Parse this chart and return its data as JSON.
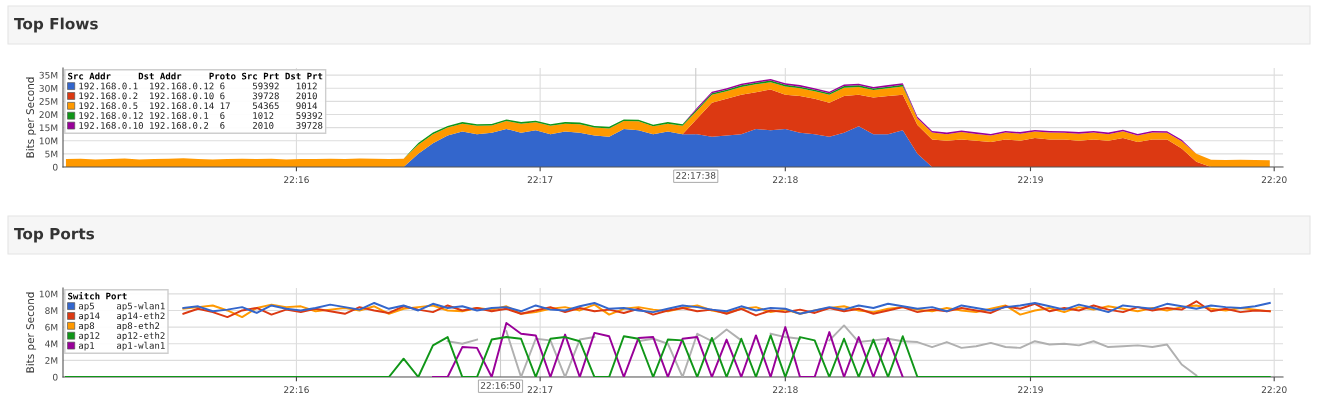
{
  "chart_data": [
    {
      "type": "area",
      "title": "Top Flows",
      "ylabel": "Bits per Second",
      "stacked": true,
      "grid": true,
      "legend": "top left",
      "legend_title": "Src Addr\tDst Addr\tProto\tSrc Prt\tDst Prt",
      "x": [
        22.251,
        22.252,
        22.253,
        22.254,
        22.255,
        22.256,
        22.257,
        22.258,
        22.259,
        22.26,
        22.261,
        22.262,
        22.263,
        22.264,
        22.265,
        22.266,
        22.267,
        22.268,
        22.269,
        22.27,
        22.271,
        22.272,
        22.273,
        22.274,
        22.275,
        22.276,
        22.277,
        22.278,
        22.279,
        22.28,
        22.281,
        22.282,
        22.283,
        22.284,
        22.285,
        22.286,
        22.287,
        22.288,
        22.289,
        22.29,
        22.291,
        22.292,
        22.293,
        22.294,
        22.295,
        22.296,
        22.297,
        22.298,
        22.299,
        22.3,
        22.301,
        22.302,
        22.303,
        22.304,
        22.305,
        22.306,
        22.307,
        22.308,
        22.309,
        22.31,
        22.311,
        22.312,
        22.313,
        22.314,
        22.315,
        22.316,
        22.317,
        22.318,
        22.319,
        22.32,
        22.321,
        22.322,
        22.323,
        22.324,
        22.325,
        22.326,
        22.327,
        22.328,
        22.329,
        22.33,
        22.331,
        22.332,
        22.333
      ],
      "xlim": [
        22.2508,
        22.3339
      ],
      "xticks": [
        {
          "value": 22.2667,
          "label": "22:16"
        },
        {
          "value": 22.2833,
          "label": "22:17"
        },
        {
          "value": 22.3,
          "label": "22:18"
        },
        {
          "value": 22.3167,
          "label": "22:19"
        },
        {
          "value": 22.3333,
          "label": "22:20"
        }
      ],
      "ylim": [
        0,
        37.7
      ],
      "yticks": [
        0,
        {
          "value": 5,
          "label": "5M"
        },
        {
          "value": 10,
          "label": "10M"
        },
        {
          "value": 15,
          "label": "15M"
        },
        {
          "value": 20,
          "label": "20M"
        },
        {
          "value": 25,
          "label": "25M"
        },
        {
          "value": 30,
          "label": "30M"
        },
        {
          "value": 35,
          "label": "35M"
        }
      ],
      "ref_lines": [
        {
          "axis": "x",
          "value": 22.2939,
          "label": "22:17:38",
          "color": "#cccccc"
        }
      ],
      "series": [
        {
          "name": "192.168.0.1\t192.168.0.12\t6\t59392\t1012",
          "color": "#3366cc",
          "values": [
            0,
            0,
            0,
            0,
            0,
            0,
            0,
            0,
            0,
            0,
            0,
            0,
            0,
            0,
            0,
            0,
            0,
            0,
            0,
            0,
            0,
            0,
            0,
            0,
            5,
            9,
            12,
            13.5,
            12.5,
            13,
            14.5,
            13,
            14,
            12.5,
            13.5,
            13,
            12,
            11.5,
            14.5,
            14,
            12.5,
            13.5,
            12.5,
            12.5,
            11.5,
            12,
            12.5,
            14.5,
            14,
            14.5,
            13,
            12.5,
            11.5,
            13,
            15.5,
            12.5,
            12.5,
            14,
            5,
            0,
            0,
            0,
            0,
            0,
            0,
            0,
            0,
            0,
            0,
            0,
            0,
            0,
            0,
            0,
            0,
            0,
            0,
            0,
            0,
            0,
            0,
            0,
            0
          ]
        },
        {
          "name": "192.168.0.2\t192.168.0.10\t6\t39728\t2010",
          "color": "#dc3912",
          "values": [
            0,
            0,
            0,
            0,
            0,
            0,
            0,
            0,
            0,
            0,
            0,
            0,
            0,
            0,
            0,
            0,
            0,
            0,
            0,
            0,
            0,
            0,
            0,
            0,
            0,
            0,
            0,
            0,
            0,
            0,
            0,
            0,
            0,
            0,
            0,
            0,
            0,
            0,
            0,
            0,
            0,
            0,
            0,
            6,
            13,
            14,
            15,
            14,
            15.5,
            13,
            14,
            13.5,
            13,
            14,
            12,
            14,
            14.5,
            13.5,
            11,
            10.5,
            10,
            10.5,
            10,
            9.5,
            10.5,
            10,
            11,
            10.5,
            10.5,
            10,
            10.5,
            10,
            11,
            9.5,
            10.5,
            10.5,
            7,
            2,
            0,
            0,
            0,
            0,
            0
          ]
        },
        {
          "name": "192.168.0.5\t192.168.0.14\t17\t54365\t9014",
          "color": "#ff9900",
          "values": [
            3.0,
            3.1,
            2.9,
            3.0,
            3.2,
            2.9,
            3.0,
            3.1,
            3.3,
            3.0,
            2.9,
            3.0,
            3.1,
            3.0,
            3.1,
            2.9,
            3.0,
            3.0,
            3.1,
            3.0,
            3.2,
            3.1,
            3.0,
            3.1,
            3.5,
            3.5,
            3.0,
            3.0,
            3.2,
            2.8,
            3.0,
            3.5,
            3.0,
            3.2,
            3.0,
            3.3,
            3.0,
            3.2,
            3.0,
            3.4,
            3.0,
            3.0,
            3.2,
            3.0,
            3.0,
            2.8,
            3.0,
            3.0,
            2.8,
            3.2,
            3.0,
            2.8,
            3.0,
            3.2,
            3.0,
            2.8,
            3.0,
            3.2,
            2.5,
            2.6,
            2.5,
            2.8,
            2.6,
            2.5,
            2.6,
            2.7,
            2.5,
            2.6,
            2.5,
            2.7,
            2.6,
            2.5,
            2.6,
            2.5,
            2.6,
            2.5,
            2.8,
            3.0,
            2.8,
            2.7,
            2.8,
            2.7,
            2.6
          ]
        },
        {
          "name": "192.168.0.12\t192.168.0.1\t6\t1012\t59392",
          "color": "#109618",
          "values": [
            0,
            0,
            0,
            0,
            0,
            0,
            0,
            0,
            0,
            0,
            0,
            0,
            0,
            0,
            0,
            0,
            0,
            0,
            0,
            0,
            0,
            0,
            0,
            0,
            0.6,
            0.6,
            0.6,
            0.6,
            0.6,
            0.6,
            0.6,
            0.6,
            0.6,
            0.6,
            0.6,
            0.6,
            0.6,
            0.6,
            0.6,
            0.6,
            0.6,
            0.6,
            0.6,
            0.6,
            0.6,
            0.6,
            0.6,
            0.6,
            0.6,
            0.6,
            0.6,
            0.6,
            0.6,
            0.6,
            0.6,
            0.6,
            0.6,
            0.6,
            0,
            0,
            0,
            0,
            0,
            0,
            0,
            0,
            0,
            0,
            0,
            0,
            0,
            0,
            0,
            0,
            0,
            0,
            0,
            0,
            0,
            0,
            0,
            0,
            0
          ]
        },
        {
          "name": "192.168.0.10\t192.168.0.2\t6\t2010\t39728",
          "color": "#990099",
          "values": [
            0,
            0,
            0,
            0,
            0,
            0,
            0,
            0,
            0,
            0,
            0,
            0,
            0,
            0,
            0,
            0,
            0,
            0,
            0,
            0,
            0,
            0,
            0,
            0,
            0,
            0,
            0,
            0,
            0,
            0,
            0,
            0,
            0,
            0,
            0,
            0,
            0,
            0,
            0,
            0,
            0,
            0,
            0,
            0.6,
            0.6,
            0.6,
            0.6,
            0.6,
            0.6,
            0.6,
            0.6,
            0.6,
            0.6,
            0.6,
            0.6,
            0.6,
            0.6,
            0.6,
            0.6,
            0.6,
            0.6,
            0.6,
            0.6,
            0.6,
            0.6,
            0.6,
            0.6,
            0.6,
            0.6,
            0.6,
            0.6,
            0.6,
            0.6,
            0.6,
            0.6,
            0.6,
            0.6,
            0,
            0,
            0,
            0,
            0,
            0
          ]
        }
      ]
    },
    {
      "type": "line",
      "title": "Top Ports",
      "ylabel": "Bits per Second",
      "grid": true,
      "legend": "top left",
      "legend_title": "Switch\tPort",
      "x": [
        22.251,
        22.252,
        22.253,
        22.254,
        22.255,
        22.256,
        22.257,
        22.258,
        22.259,
        22.26,
        22.261,
        22.262,
        22.263,
        22.264,
        22.265,
        22.266,
        22.267,
        22.268,
        22.269,
        22.27,
        22.271,
        22.272,
        22.273,
        22.274,
        22.275,
        22.276,
        22.277,
        22.278,
        22.279,
        22.28,
        22.281,
        22.282,
        22.283,
        22.284,
        22.285,
        22.286,
        22.287,
        22.288,
        22.289,
        22.29,
        22.291,
        22.292,
        22.293,
        22.294,
        22.295,
        22.296,
        22.297,
        22.298,
        22.299,
        22.3,
        22.301,
        22.302,
        22.303,
        22.304,
        22.305,
        22.306,
        22.307,
        22.308,
        22.309,
        22.31,
        22.311,
        22.312,
        22.313,
        22.314,
        22.315,
        22.316,
        22.317,
        22.318,
        22.319,
        22.32,
        22.321,
        22.322,
        22.323,
        22.324,
        22.325,
        22.326,
        22.327,
        22.328,
        22.329,
        22.33,
        22.331,
        22.332,
        22.333
      ],
      "xlim": [
        22.2508,
        22.3339
      ],
      "xticks": [
        {
          "value": 22.2667,
          "label": "22:16"
        },
        {
          "value": 22.2833,
          "label": "22:17"
        },
        {
          "value": 22.3,
          "label": "22:18"
        },
        {
          "value": 22.3167,
          "label": "22:19"
        },
        {
          "value": 22.3333,
          "label": "22:20"
        }
      ],
      "ylim": [
        0,
        10.7
      ],
      "yticks": [
        0,
        {
          "value": 2,
          "label": "2M"
        },
        {
          "value": 4,
          "label": "4M"
        },
        {
          "value": 6,
          "label": "6M"
        },
        {
          "value": 8,
          "label": "8M"
        },
        {
          "value": 10,
          "label": "10M"
        }
      ],
      "ref_lines": [
        {
          "axis": "x",
          "value": 22.2806,
          "label": "22:16:50",
          "color": "#cccccc"
        }
      ],
      "series": [
        {
          "name": "ap5\tap5-wlan1",
          "color": "#3366cc",
          "values": [
            null,
            null,
            null,
            null,
            null,
            null,
            null,
            null,
            8.3,
            8.5,
            7.9,
            8.1,
            8.4,
            7.7,
            8.6,
            8.2,
            8.0,
            8.3,
            8.7,
            8.4,
            8.1,
            8.9,
            8.2,
            8.6,
            8.0,
            8.8,
            8.3,
            8.5,
            8.0,
            8.3,
            8.4,
            7.9,
            8.6,
            8.1,
            8.0,
            8.5,
            8.9,
            8.2,
            8.3,
            8.0,
            7.8,
            8.2,
            8.6,
            8.4,
            8.1,
            7.9,
            8.5,
            8.0,
            8.3,
            8.2,
            7.6,
            8.0,
            8.4,
            8.1,
            8.6,
            8.3,
            8.8,
            8.5,
            8.2,
            8.4,
            7.9,
            8.6,
            8.3,
            8.0,
            8.4,
            8.6,
            8.9,
            8.5,
            8.1,
            8.7,
            8.3,
            7.8,
            8.6,
            8.4,
            8.2,
            8.8,
            8.5,
            8.2,
            8.6,
            8.4,
            8.3,
            8.5,
            8.9
          ]
        },
        {
          "name": "ap14\tap14-eth2",
          "color": "#dc3912",
          "values": [
            null,
            null,
            null,
            null,
            null,
            null,
            null,
            null,
            7.6,
            8.2,
            7.8,
            7.2,
            8.0,
            8.3,
            7.5,
            8.1,
            7.8,
            8.2,
            7.9,
            7.6,
            8.4,
            8.0,
            7.7,
            8.5,
            8.1,
            7.8,
            8.6,
            8.0,
            8.3,
            7.9,
            8.2,
            7.6,
            8.0,
            8.4,
            7.8,
            8.3,
            7.9,
            8.1,
            7.7,
            8.2,
            7.5,
            8.0,
            8.3,
            7.9,
            8.1,
            7.6,
            8.2,
            7.4,
            8.0,
            7.8,
            8.1,
            7.7,
            8.3,
            7.9,
            8.2,
            7.6,
            8.0,
            8.4,
            7.8,
            8.1,
            7.9,
            8.3,
            8.0,
            7.7,
            8.5,
            8.2,
            8.8,
            7.9,
            8.3,
            8.0,
            8.6,
            8.1,
            7.8,
            8.4,
            8.0,
            8.3,
            8.1,
            9.1,
            7.9,
            8.2,
            7.8,
            8.0,
            7.9
          ]
        },
        {
          "name": "ap8\tap8-eth2",
          "color": "#ff9900",
          "values": [
            null,
            null,
            null,
            null,
            null,
            null,
            null,
            null,
            8.2,
            8.4,
            8.6,
            8.0,
            7.2,
            8.3,
            8.7,
            8.4,
            8.5,
            7.9,
            8.1,
            8.3,
            8.0,
            8.5,
            7.6,
            8.2,
            8.4,
            8.6,
            8.0,
            7.9,
            8.3,
            8.1,
            8.5,
            7.6,
            7.8,
            8.2,
            8.4,
            8.0,
            8.7,
            7.5,
            8.2,
            8.4,
            8.1,
            7.9,
            8.3,
            8.6,
            8.0,
            7.7,
            8.2,
            8.4,
            7.8,
            8.1,
            7.6,
            8.0,
            8.3,
            8.5,
            8.0,
            7.8,
            8.2,
            8.4,
            8.1,
            7.9,
            8.3,
            8.0,
            7.8,
            8.2,
            8.6,
            7.5,
            8.0,
            8.3,
            7.8,
            8.4,
            8.1,
            8.5,
            8.2,
            7.9,
            8.3,
            8.0,
            8.4,
            8.6,
            8.2,
            8.0,
            8.3,
            8.1,
            7.9
          ]
        },
        {
          "name": "ap12\tap12-eth2",
          "color": "#109618",
          "values": [
            0,
            0,
            0,
            0,
            0,
            0,
            0,
            0,
            0,
            0,
            0,
            0,
            0,
            0,
            0,
            0,
            0,
            0,
            0,
            0,
            0,
            0,
            0,
            2.2,
            0,
            3.8,
            4.8,
            0,
            0,
            4.5,
            4.8,
            4.6,
            0,
            4.6,
            4.8,
            4.3,
            0,
            0,
            4.9,
            4.6,
            0,
            4.5,
            4.4,
            0,
            4.7,
            0,
            4.6,
            0,
            5.0,
            0,
            4.8,
            4.4,
            0,
            4.6,
            0,
            4.5,
            0,
            4.9,
            0,
            0,
            0,
            0,
            0,
            0,
            0,
            0,
            0,
            0,
            0,
            0,
            0,
            0,
            0,
            0,
            0,
            0,
            0,
            0,
            0,
            0,
            0,
            0,
            0
          ]
        },
        {
          "name": "ap1\tap1-wlan1",
          "color": "#990099",
          "values": [
            null,
            null,
            null,
            null,
            null,
            null,
            null,
            null,
            null,
            null,
            null,
            null,
            null,
            null,
            null,
            null,
            null,
            null,
            null,
            null,
            null,
            null,
            null,
            null,
            null,
            0,
            0,
            3.6,
            3.5,
            0,
            6.5,
            5.2,
            5.0,
            0,
            5.1,
            0,
            5.3,
            4.9,
            0,
            4.7,
            4.8,
            0,
            4.6,
            4.8,
            0,
            4.5,
            0,
            5.0,
            0,
            6.0,
            0,
            0,
            5.4,
            0,
            4.8,
            0,
            4.7,
            0,
            null,
            null,
            null,
            null,
            null,
            null,
            null,
            null,
            null,
            null,
            null,
            null,
            null,
            null,
            null,
            null,
            null,
            null,
            null,
            null,
            null,
            null,
            null,
            null,
            null
          ]
        },
        {
          "color": "#b0b0b0",
          "values": [
            null,
            null,
            null,
            null,
            null,
            null,
            null,
            null,
            null,
            null,
            null,
            null,
            null,
            null,
            null,
            null,
            null,
            null,
            null,
            null,
            null,
            null,
            null,
            null,
            null,
            null,
            4.3,
            4.0,
            4.5,
            null,
            5.5,
            0,
            4.6,
            4.4,
            0,
            4.5,
            4.8,
            null,
            null,
            4.3,
            4.6,
            4.0,
            0,
            5.2,
            4.3,
            5.7,
            4.4,
            null,
            5.2,
            4.8,
            4.6,
            null,
            4.4,
            6.2,
            4.2,
            4.4,
            4.6,
            4.3,
            4.2,
            3.6,
            4.2,
            3.5,
            3.7,
            4.1,
            3.6,
            3.5,
            4.3,
            3.9,
            4.0,
            3.8,
            4.3,
            3.6,
            3.7,
            3.8,
            3.6,
            3.9,
            1.5,
            0.2,
            null,
            null,
            null,
            null,
            null
          ]
        }
      ]
    }
  ]
}
